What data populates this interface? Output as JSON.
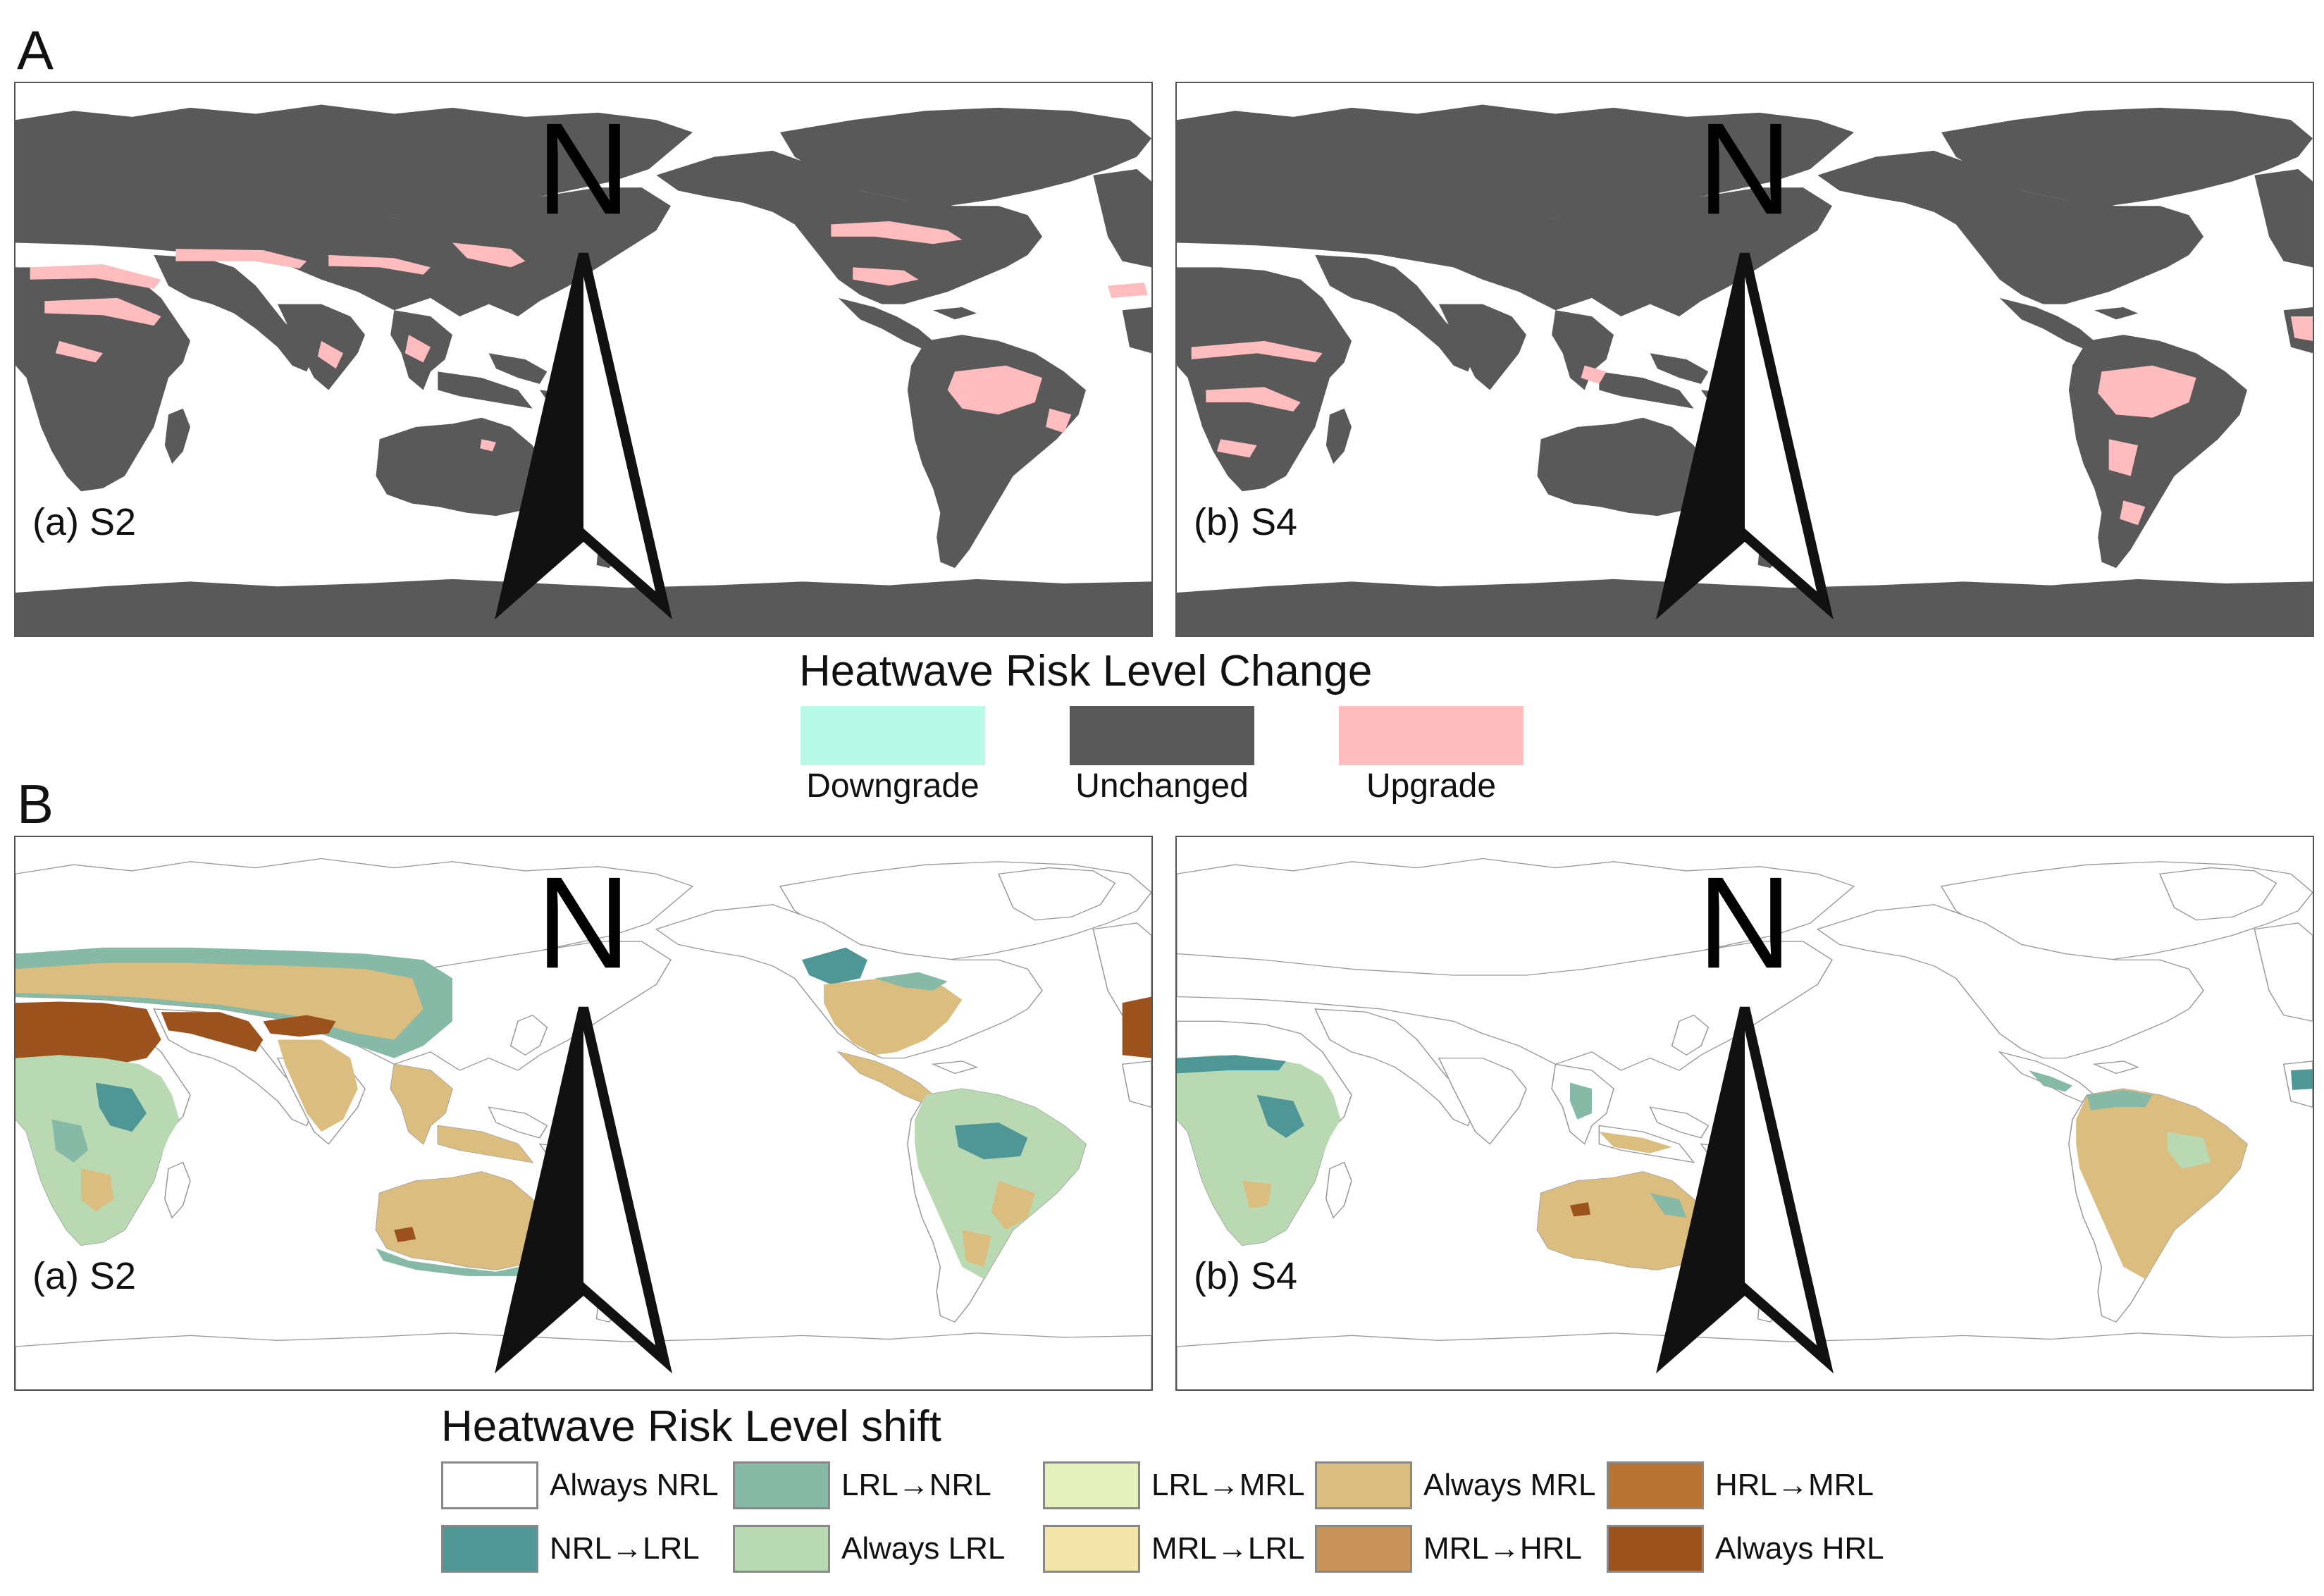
{
  "section_a": {
    "label": "A",
    "panel_a_label": "(a) S2",
    "panel_b_label": "(b) S4",
    "north_label": "N",
    "legend_title": "Heatwave Risk Level Change",
    "legend": [
      {
        "label": "Downgrade",
        "color": "#b9fae6"
      },
      {
        "label": "Unchanged",
        "color": "#595959"
      },
      {
        "label": "Upgrade",
        "color": "#ffbcbe"
      }
    ]
  },
  "section_b": {
    "label": "B",
    "panel_a_label": "(a) S2",
    "panel_b_label": "(b) S4",
    "north_label": "N",
    "legend_title": "Heatwave Risk Level shift",
    "legend": [
      {
        "label": "Always NRL",
        "color": "#ffffff"
      },
      {
        "label": "LRL→NRL",
        "color": "#86b9a6"
      },
      {
        "label": "LRL→MRL",
        "color": "#e6f0bd"
      },
      {
        "label": "Always MRL",
        "color": "#dcbd80"
      },
      {
        "label": "HRL→MRL",
        "color": "#b87334"
      },
      {
        "label": "NRL→LRL",
        "color": "#4f9697"
      },
      {
        "label": "Always LRL",
        "color": "#b9d9b2"
      },
      {
        "label": "MRL→LRL",
        "color": "#f3e5a9"
      },
      {
        "label": "MRL→HRL",
        "color": "#c8945a"
      },
      {
        "label": "Always HRL",
        "color": "#9c521c"
      }
    ]
  }
}
